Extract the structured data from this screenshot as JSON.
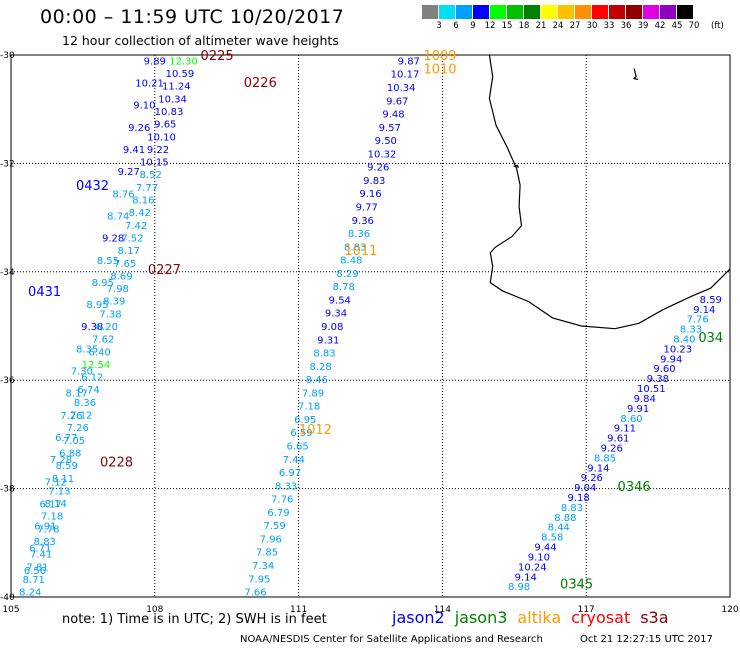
{
  "header": {
    "title": "00:00 – 11:59 UTC 10/20/2017",
    "subtitle": "12 hour collection of altimeter wave heights"
  },
  "legend": {
    "unit": "(ft)",
    "ticks": [
      "3",
      "6",
      "9",
      "12",
      "15",
      "18",
      "21",
      "24",
      "27",
      "30",
      "33",
      "36",
      "39",
      "42",
      "45",
      "70"
    ],
    "colors": [
      "#808080",
      "#00e0f0",
      "#00a0ff",
      "#0000ff",
      "#00ff00",
      "#00c000",
      "#008000",
      "#ffff00",
      "#ffc000",
      "#ff9000",
      "#ff0000",
      "#c00000",
      "#900000",
      "#e000e0",
      "#9000c0",
      "#000000"
    ]
  },
  "map": {
    "x_ticks": [
      {
        "lon": 105,
        "label": "105"
      },
      {
        "lon": 108,
        "label": "108"
      },
      {
        "lon": 111,
        "label": "111"
      },
      {
        "lon": 114,
        "label": "114"
      },
      {
        "lon": 117,
        "label": "117"
      },
      {
        "lon": 120,
        "label": "120"
      }
    ],
    "y_ticks": [
      {
        "lat": -30,
        "label": "-30"
      },
      {
        "lat": -32,
        "label": "-32"
      },
      {
        "lat": -34,
        "label": "-34"
      },
      {
        "lat": -36,
        "label": "-36"
      },
      {
        "lat": -38,
        "label": "-38"
      },
      {
        "lat": -40,
        "label": "-40"
      }
    ],
    "satellite_colors": {
      "jason2": "#0000ff",
      "jason3": "#008000",
      "altika": "#ff9900",
      "cryosat": "#ff0000",
      "s3a": "#8b0000"
    }
  },
  "tracks": [
    {
      "name": "track-0431-0432",
      "start": [
        108.0,
        -30.1
      ],
      "end": [
        105.5,
        -39.5
      ],
      "values": [
        "9.89",
        "10.21",
        "9.10",
        "9.26",
        "9.41",
        "9.27",
        "8.76",
        "8.74",
        "9.28",
        "8.55",
        "8.95",
        "8.95",
        "9.38",
        "8.35",
        "7.30",
        "8.17",
        "7.26",
        "6.77",
        "7.28",
        "7.12",
        "6.17",
        "6.91",
        "6.71",
        "6.56"
      ],
      "colors": [
        "#0000ff",
        "#0000ff",
        "#0000ff",
        "#0000ff",
        "#0000ff",
        "#0000ff",
        "#00a0ff",
        "#00a0ff",
        "#0000ff",
        "#00a0ff",
        "#00a0ff",
        "#00a0ff",
        "#0000ff",
        "#00a0ff",
        "#00a0ff",
        "#00a0ff",
        "#00a0ff",
        "#00a0ff",
        "#00a0ff",
        "#00a0ff",
        "#00a0ff",
        "#00a0ff",
        "#00a0ff",
        "#00a0ff"
      ]
    },
    {
      "name": "track-0225-0228",
      "start": [
        108.6,
        -30.1
      ],
      "end": [
        105.4,
        -39.9
      ],
      "values": [
        "12.30",
        "10.59",
        "11.24",
        "10.34",
        "10.83",
        "9.65",
        "10.10",
        "9.22",
        "10.15",
        "8.52",
        "7.77",
        "8.16",
        "8.42",
        "7.42",
        "7.52",
        "8.17",
        "7.65",
        "8.69",
        "7.98",
        "8.39",
        "7.38",
        "6.20",
        "7.62",
        "6.40",
        "12.54",
        "6.12",
        "6.74",
        "8.36",
        "7.12",
        "7.26",
        "7.05",
        "6.88",
        "8.59",
        "8.11",
        "7.13",
        "8.14",
        "7.18",
        "7.78",
        "8.83",
        "7.41",
        "7.81",
        "8.71",
        "8.24"
      ],
      "colors": [
        "#00ff00",
        "#0000ff",
        "#0000ff",
        "#0000ff",
        "#0000ff",
        "#0000ff",
        "#0000ff",
        "#0000ff",
        "#0000ff",
        "#00a0ff",
        "#00a0ff",
        "#00a0ff",
        "#00a0ff",
        "#00a0ff",
        "#00a0ff",
        "#00a0ff",
        "#00a0ff",
        "#00a0ff",
        "#00a0ff",
        "#00a0ff",
        "#00a0ff",
        "#00a0ff",
        "#00a0ff",
        "#00a0ff",
        "#00ff00",
        "#00a0ff",
        "#00a0ff",
        "#00a0ff",
        "#00a0ff",
        "#00a0ff",
        "#00a0ff",
        "#00a0ff",
        "#00a0ff",
        "#00a0ff",
        "#00a0ff",
        "#00a0ff",
        "#00a0ff",
        "#00a0ff",
        "#00a0ff",
        "#00a0ff",
        "#00a0ff",
        "#00a0ff",
        "#00a0ff"
      ]
    },
    {
      "name": "track-1009-1012",
      "start": [
        113.3,
        -30.1
      ],
      "end": [
        110.1,
        -39.9
      ],
      "values": [
        "9.87",
        "10.17",
        "10.34",
        "9.67",
        "9.48",
        "9.57",
        "9.50",
        "10.32",
        "9.26",
        "9.83",
        "9.16",
        "9.77",
        "9.36",
        "8.36",
        "8.83",
        "8.48",
        "8.29",
        "8.78",
        "9.54",
        "9.34",
        "9.08",
        "9.31",
        "8.83",
        "8.28",
        "8.46",
        "7.89",
        "7.18",
        "6.95",
        "6.59",
        "6.65",
        "7.44",
        "6.97",
        "8.33",
        "7.76",
        "6.79",
        "7.59",
        "7.96",
        "7.85",
        "7.34",
        "7.95",
        "7.66"
      ],
      "colors": [
        "#0000ff",
        "#0000ff",
        "#0000ff",
        "#0000ff",
        "#0000ff",
        "#0000ff",
        "#0000ff",
        "#0000ff",
        "#0000ff",
        "#0000ff",
        "#0000ff",
        "#0000ff",
        "#0000ff",
        "#00a0ff",
        "#00a0ff",
        "#00a0ff",
        "#00a0ff",
        "#00a0ff",
        "#0000ff",
        "#0000ff",
        "#0000ff",
        "#0000ff",
        "#00a0ff",
        "#00a0ff",
        "#00a0ff",
        "#00a0ff",
        "#00a0ff",
        "#00a0ff",
        "#00a0ff",
        "#00a0ff",
        "#00a0ff",
        "#00a0ff",
        "#00a0ff",
        "#00a0ff",
        "#00a0ff",
        "#00a0ff",
        "#00a0ff",
        "#00a0ff",
        "#00a0ff",
        "#00a0ff",
        "#00a0ff"
      ]
    },
    {
      "name": "track-0345-034",
      "start": [
        119.6,
        -34.5
      ],
      "end": [
        115.6,
        -39.8
      ],
      "values": [
        "8.59",
        "9.14",
        "7.76",
        "8.33",
        "8.40",
        "10.23",
        "9.94",
        "9.60",
        "9.38",
        "10.51",
        "9.84",
        "9.91",
        "8.60",
        "9.11",
        "9.61",
        "9.26",
        "8.85",
        "9.14",
        "9.26",
        "9.04",
        "9.18",
        "8.83",
        "8.88",
        "8.44",
        "8.58",
        "9.44",
        "9.10",
        "10.24",
        "9.14",
        "8.98"
      ],
      "colors": [
        "#0000ff",
        "#0000ff",
        "#00a0ff",
        "#00a0ff",
        "#00a0ff",
        "#0000ff",
        "#0000ff",
        "#0000ff",
        "#0000ff",
        "#0000ff",
        "#0000ff",
        "#0000ff",
        "#00a0ff",
        "#0000ff",
        "#0000ff",
        "#0000ff",
        "#00a0ff",
        "#0000ff",
        "#0000ff",
        "#0000ff",
        "#0000ff",
        "#00a0ff",
        "#00a0ff",
        "#00a0ff",
        "#00a0ff",
        "#0000ff",
        "#0000ff",
        "#0000ff",
        "#0000ff",
        "#00a0ff"
      ]
    }
  ],
  "time_labels": [
    {
      "text": "0225",
      "lon": 109.3,
      "lat": -30.0,
      "color": "#8b0000"
    },
    {
      "text": "0226",
      "lon": 110.2,
      "lat": -30.5,
      "color": "#8b0000"
    },
    {
      "text": "0432",
      "lon": 106.7,
      "lat": -32.4,
      "color": "#0000ff"
    },
    {
      "text": "0227",
      "lon": 108.2,
      "lat": -33.95,
      "color": "#8b0000"
    },
    {
      "text": "0431",
      "lon": 105.7,
      "lat": -34.35,
      "color": "#0000ff"
    },
    {
      "text": "0228",
      "lon": 107.2,
      "lat": -37.5,
      "color": "#8b0000"
    },
    {
      "text": "1009",
      "lon": 113.95,
      "lat": -30.0,
      "color": "#ff9900"
    },
    {
      "text": "1010",
      "lon": 113.95,
      "lat": -30.25,
      "color": "#ff9900"
    },
    {
      "text": "1011",
      "lon": 112.3,
      "lat": -33.6,
      "color": "#ff9900"
    },
    {
      "text": "1012",
      "lon": 111.35,
      "lat": -36.9,
      "color": "#ff9900"
    },
    {
      "text": "034",
      "lon": 119.6,
      "lat": -35.2,
      "color": "#008000"
    },
    {
      "text": "0346",
      "lon": 118.0,
      "lat": -37.95,
      "color": "#008000"
    },
    {
      "text": "0345",
      "lon": 116.8,
      "lat": -39.75,
      "color": "#008000"
    }
  ],
  "footer": {
    "note": "note:  1) Time is in UTC;  2) SWH is in feet",
    "credit": "NOAA/NESDIS Center for Satellite Applications and Research",
    "timestamp": "Oct 21 12:27:15 UTC 2017"
  },
  "satellites": [
    {
      "key": "jason2",
      "label": "jason2",
      "color": "#0000ff"
    },
    {
      "key": "jason3",
      "label": "jason3",
      "color": "#008000"
    },
    {
      "key": "altika",
      "label": "altika",
      "color": "#ff9900"
    },
    {
      "key": "cryosat",
      "label": "cryosat",
      "color": "#ff0000"
    },
    {
      "key": "s3a",
      "label": "s3a",
      "color": "#8b0000"
    }
  ]
}
